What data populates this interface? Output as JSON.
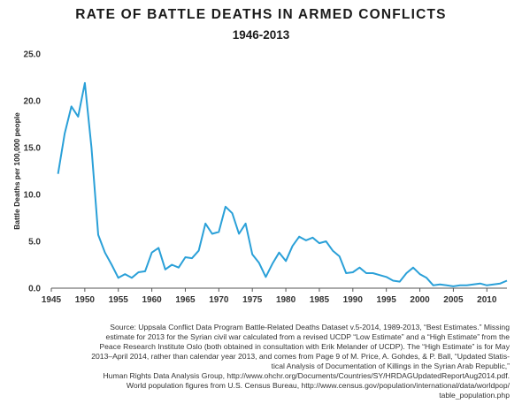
{
  "chart_data": {
    "type": "line",
    "title": "RATE OF BATTLE DEATHS IN ARMED CONFLICTS",
    "subtitle": "1946-2013",
    "ylabel": "Battle Deaths per 100,000 people",
    "xlabel": "",
    "xlim": [
      1945,
      2013
    ],
    "ylim": [
      0,
      25
    ],
    "xticks": [
      "1945",
      "1950",
      "1955",
      "1960",
      "1965",
      "1970",
      "1975",
      "1980",
      "1985",
      "1990",
      "1995",
      "2000",
      "2005",
      "2010"
    ],
    "yticks": [
      "0.0",
      "5.0",
      "10.0",
      "15.0",
      "20.0",
      "25.0"
    ],
    "grid": false,
    "color": "#2aa0d8",
    "series": [
      {
        "x": [
          1946,
          1947,
          1948,
          1949,
          1950,
          1951,
          1952,
          1953,
          1954,
          1955,
          1956,
          1957,
          1958,
          1959,
          1960,
          1961,
          1962,
          1963,
          1964,
          1965,
          1966,
          1967,
          1968,
          1969,
          1970,
          1971,
          1972,
          1973,
          1974,
          1975,
          1976,
          1977,
          1978,
          1979,
          1980,
          1981,
          1982,
          1983,
          1984,
          1985,
          1986,
          1987,
          1988,
          1989,
          1990,
          1991,
          1992,
          1993,
          1994,
          1995,
          1996,
          1997,
          1998,
          1999,
          2000,
          2001,
          2002,
          2003,
          2004,
          2005,
          2006,
          2007,
          2008,
          2009,
          2010,
          2011,
          2012,
          2013
        ],
        "values": [
          12.2,
          16.5,
          19.4,
          18.3,
          21.9,
          15.0,
          5.7,
          3.8,
          2.5,
          1.1,
          1.5,
          1.1,
          1.7,
          1.8,
          3.8,
          4.3,
          2.0,
          2.5,
          2.2,
          3.3,
          3.2,
          4.0,
          6.9,
          5.8,
          6.0,
          8.7,
          8.0,
          5.8,
          6.9,
          3.6,
          2.7,
          1.2,
          2.6,
          3.8,
          2.9,
          4.5,
          5.5,
          5.1,
          5.4,
          4.8,
          5.0,
          4.0,
          3.4,
          1.6,
          1.7,
          2.2,
          1.6,
          1.6,
          1.4,
          1.2,
          0.8,
          0.7,
          1.6,
          2.2,
          1.5,
          1.1,
          0.3,
          0.4,
          0.3,
          0.2,
          0.3,
          0.3,
          0.4,
          0.5,
          0.3,
          0.4,
          0.5,
          0.8
        ]
      }
    ]
  },
  "source": {
    "lines": [
      "Source: Uppsala Conflict Data Program Battle-Related Deaths Dataset v.5-2014, 1989-2013, “Best Estimates.” Missing",
      "estimate for 2013 for the Syrian civil war calculated from a revised UCDP “Low Estimate” and a “High Estimate” from the",
      "Peace Research Institute Oslo (both obtained in consultation with Erik Melander of UCDP). The “High Estimate” is for May",
      "2013–April 2014, rather than calendar year 2013, and comes from Page 9 of M. Price, A. Gohdes, & P. Ball, “Updated Statis-",
      "tical Analysis of Documentation of Killings in the Syrian Arab Republic,”",
      "Human Rights Data Analysis Group, http://www.ohchr.org/Documents/Countries/SY/HRDAGUpdatedReportAug2014.pdf.",
      "World population figures from U.S. Census Bureau, http://www.census.gov/population/international/data/worldpop/",
      "table_population.php"
    ]
  }
}
